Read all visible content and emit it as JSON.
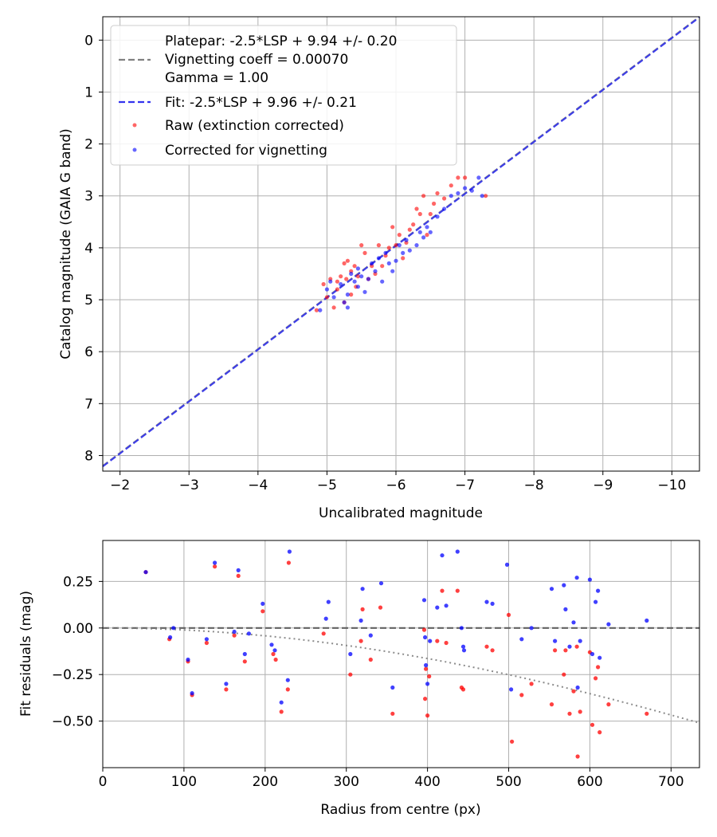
{
  "chart_data": [
    {
      "type": "scatter",
      "xlabel": "Uncalibrated magnitude",
      "ylabel": "Catalog magnitude (GAIA G band)",
      "xlim": [
        -1.75,
        -10.4
      ],
      "ylim": [
        8.3,
        -0.45
      ],
      "xticks": [
        -2,
        -3,
        -4,
        -5,
        -6,
        -7,
        -8,
        -9,
        -10
      ],
      "xtick_labels": [
        "−2",
        "−3",
        "−4",
        "−5",
        "−6",
        "−7",
        "−8",
        "−9",
        "−10"
      ],
      "yticks": [
        0,
        1,
        2,
        3,
        4,
        5,
        6,
        7,
        8
      ],
      "ytick_labels": [
        "0",
        "1",
        "2",
        "3",
        "4",
        "5",
        "6",
        "7",
        "8"
      ],
      "grid": true,
      "legend_position": "top-left",
      "legend": [
        {
          "label": "Platepar: -2.5*LSP + 9.94 +/- 0.20",
          "marker": "none"
        },
        {
          "label": "Vignetting coeff = 0.00070",
          "marker": "dashed-line",
          "color": "#808080"
        },
        {
          "label": "Gamma = 1.00",
          "marker": "none"
        },
        {
          "label": "Fit: -2.5*LSP + 9.96 +/- 0.21",
          "marker": "dashed-line",
          "color": "#3333ee"
        },
        {
          "label": "Raw (extinction corrected)",
          "marker": "dot",
          "color": "#ff0000"
        },
        {
          "label": "Corrected for vignetting",
          "marker": "dot",
          "color": "#0000ff"
        }
      ],
      "lines": [
        {
          "name": "Platepar",
          "x": [
            -1.75,
            -10.4
          ],
          "y": [
            8.2,
            -0.45
          ],
          "color": "#808080",
          "style": "dashed"
        },
        {
          "name": "Fit",
          "x": [
            -1.75,
            -10.4
          ],
          "y": [
            8.21,
            -0.44
          ],
          "color": "#3333ee",
          "style": "dashed"
        }
      ],
      "series": [
        {
          "name": "Raw (extinction corrected)",
          "color": "#ff0000",
          "points": [
            [
              -4.85,
              5.2
            ],
            [
              -4.95,
              4.7
            ],
            [
              -5.0,
              4.95
            ],
            [
              -5.05,
              4.6
            ],
            [
              -5.1,
              5.15
            ],
            [
              -5.15,
              4.8
            ],
            [
              -5.2,
              4.55
            ],
            [
              -5.25,
              4.3
            ],
            [
              -5.28,
              4.6
            ],
            [
              -5.3,
              4.25
            ],
            [
              -5.35,
              4.45
            ],
            [
              -5.4,
              4.35
            ],
            [
              -5.42,
              4.75
            ],
            [
              -5.45,
              4.55
            ],
            [
              -5.5,
              3.95
            ],
            [
              -5.55,
              4.1
            ],
            [
              -5.6,
              4.6
            ],
            [
              -5.65,
              4.35
            ],
            [
              -5.7,
              4.5
            ],
            [
              -5.75,
              3.95
            ],
            [
              -5.8,
              4.35
            ],
            [
              -5.85,
              4.15
            ],
            [
              -5.9,
              4.0
            ],
            [
              -5.95,
              3.6
            ],
            [
              -6.0,
              3.95
            ],
            [
              -6.05,
              3.75
            ],
            [
              -6.1,
              4.2
            ],
            [
              -6.15,
              3.9
            ],
            [
              -6.2,
              3.65
            ],
            [
              -6.25,
              3.55
            ],
            [
              -6.3,
              3.25
            ],
            [
              -6.35,
              3.35
            ],
            [
              -6.4,
              3.0
            ],
            [
              -6.45,
              3.75
            ],
            [
              -6.5,
              3.35
            ],
            [
              -6.55,
              3.15
            ],
            [
              -6.6,
              2.95
            ],
            [
              -6.7,
              3.05
            ],
            [
              -6.8,
              2.8
            ],
            [
              -6.9,
              2.65
            ],
            [
              -7.0,
              2.65
            ],
            [
              -7.3,
              3.0
            ],
            [
              -5.25,
              5.05
            ],
            [
              -5.15,
              4.65
            ],
            [
              -5.35,
              4.9
            ]
          ]
        },
        {
          "name": "Corrected for vignetting",
          "color": "#0000ff",
          "points": [
            [
              -4.9,
              5.2
            ],
            [
              -5.0,
              4.8
            ],
            [
              -5.05,
              4.65
            ],
            [
              -5.1,
              4.95
            ],
            [
              -5.2,
              4.7
            ],
            [
              -5.25,
              5.05
            ],
            [
              -5.3,
              4.9
            ],
            [
              -5.35,
              4.5
            ],
            [
              -5.4,
              4.65
            ],
            [
              -5.45,
              4.4
            ],
            [
              -5.5,
              4.55
            ],
            [
              -5.55,
              4.85
            ],
            [
              -5.6,
              4.6
            ],
            [
              -5.65,
              4.3
            ],
            [
              -5.7,
              4.45
            ],
            [
              -5.75,
              4.2
            ],
            [
              -5.8,
              4.65
            ],
            [
              -5.85,
              4.1
            ],
            [
              -5.9,
              4.3
            ],
            [
              -5.95,
              4.45
            ],
            [
              -6.0,
              4.25
            ],
            [
              -6.05,
              3.95
            ],
            [
              -6.1,
              4.1
            ],
            [
              -6.2,
              4.05
            ],
            [
              -6.3,
              3.95
            ],
            [
              -6.4,
              3.8
            ],
            [
              -6.45,
              3.6
            ],
            [
              -6.5,
              3.7
            ],
            [
              -6.6,
              3.4
            ],
            [
              -6.7,
              3.25
            ],
            [
              -6.8,
              3.0
            ],
            [
              -6.9,
              2.95
            ],
            [
              -7.0,
              2.85
            ],
            [
              -7.1,
              2.9
            ],
            [
              -7.2,
              2.65
            ],
            [
              -7.25,
              3.0
            ],
            [
              -5.3,
              5.15
            ],
            [
              -5.45,
              4.75
            ],
            [
              -6.15,
              3.85
            ],
            [
              -6.35,
              3.7
            ]
          ]
        }
      ]
    },
    {
      "type": "scatter",
      "xlabel": "Radius from centre (px)",
      "ylabel": "Fit residuals (mag)",
      "xlim": [
        0,
        735
      ],
      "ylim": [
        -0.75,
        0.47
      ],
      "xticks": [
        0,
        100,
        200,
        300,
        400,
        500,
        600,
        700
      ],
      "xtick_labels": [
        "0",
        "100",
        "200",
        "300",
        "400",
        "500",
        "600",
        "700"
      ],
      "yticks": [
        0.25,
        0.0,
        -0.25,
        -0.5
      ],
      "ytick_labels": [
        "0.25",
        "0.00",
        "−0.25",
        "−0.50"
      ],
      "grid": true,
      "lines": [
        {
          "name": "zero",
          "x": [
            0,
            735
          ],
          "y": [
            0,
            0
          ],
          "color": "#555555",
          "style": "dashed"
        },
        {
          "name": "vignetting model",
          "curve": "vignetting",
          "coeff": 0.0007,
          "color": "#808080",
          "style": "dotted"
        }
      ],
      "series": [
        {
          "name": "Raw (extinction corrected)",
          "color": "#ff0000",
          "points": [
            [
              53,
              0.3
            ],
            [
              82,
              -0.06
            ],
            [
              105,
              -0.18
            ],
            [
              110,
              -0.36
            ],
            [
              128,
              -0.08
            ],
            [
              138,
              0.33
            ],
            [
              152,
              -0.33
            ],
            [
              162,
              -0.04
            ],
            [
              167,
              0.28
            ],
            [
              175,
              -0.18
            ],
            [
              197,
              0.09
            ],
            [
              210,
              -0.14
            ],
            [
              213,
              -0.17
            ],
            [
              220,
              -0.45
            ],
            [
              228,
              -0.33
            ],
            [
              229,
              0.35
            ],
            [
              272,
              -0.03
            ],
            [
              305,
              -0.25
            ],
            [
              318,
              -0.07
            ],
            [
              320,
              0.1
            ],
            [
              330,
              -0.17
            ],
            [
              342,
              0.11
            ],
            [
              357,
              -0.46
            ],
            [
              396,
              -0.01
            ],
            [
              397,
              -0.38
            ],
            [
              398,
              -0.22
            ],
            [
              400,
              -0.47
            ],
            [
              402,
              -0.26
            ],
            [
              412,
              -0.07
            ],
            [
              418,
              0.2
            ],
            [
              423,
              -0.08
            ],
            [
              437,
              0.2
            ],
            [
              442,
              -0.32
            ],
            [
              444,
              -0.33
            ],
            [
              473,
              -0.1
            ],
            [
              480,
              -0.12
            ],
            [
              500,
              0.07
            ],
            [
              504,
              -0.61
            ],
            [
              516,
              -0.36
            ],
            [
              528,
              -0.3
            ],
            [
              553,
              -0.41
            ],
            [
              557,
              -0.12
            ],
            [
              568,
              -0.25
            ],
            [
              570,
              -0.12
            ],
            [
              575,
              -0.46
            ],
            [
              580,
              -0.34
            ],
            [
              584,
              -0.1
            ],
            [
              585,
              -0.69
            ],
            [
              588,
              -0.45
            ],
            [
              600,
              -0.13
            ],
            [
              603,
              -0.52
            ],
            [
              607,
              -0.27
            ],
            [
              610,
              -0.21
            ],
            [
              612,
              -0.56
            ],
            [
              623,
              -0.41
            ],
            [
              670,
              -0.46
            ]
          ]
        },
        {
          "name": "Corrected for vignetting",
          "color": "#0000ff",
          "points": [
            [
              53,
              0.3
            ],
            [
              83,
              -0.05
            ],
            [
              87,
              0.0
            ],
            [
              105,
              -0.17
            ],
            [
              110,
              -0.35
            ],
            [
              128,
              -0.06
            ],
            [
              138,
              0.35
            ],
            [
              152,
              -0.3
            ],
            [
              162,
              -0.02
            ],
            [
              167,
              0.31
            ],
            [
              175,
              -0.14
            ],
            [
              180,
              -0.03
            ],
            [
              197,
              0.13
            ],
            [
              208,
              -0.09
            ],
            [
              212,
              -0.12
            ],
            [
              220,
              -0.4
            ],
            [
              228,
              -0.28
            ],
            [
              230,
              0.41
            ],
            [
              275,
              0.05
            ],
            [
              278,
              0.14
            ],
            [
              305,
              -0.14
            ],
            [
              318,
              0.04
            ],
            [
              320,
              0.21
            ],
            [
              330,
              -0.04
            ],
            [
              343,
              0.24
            ],
            [
              357,
              -0.32
            ],
            [
              396,
              0.15
            ],
            [
              397,
              -0.05
            ],
            [
              398,
              -0.2
            ],
            [
              400,
              -0.3
            ],
            [
              403,
              -0.07
            ],
            [
              412,
              0.11
            ],
            [
              418,
              0.39
            ],
            [
              423,
              0.12
            ],
            [
              437,
              0.41
            ],
            [
              442,
              0.0
            ],
            [
              444,
              -0.1
            ],
            [
              445,
              -0.12
            ],
            [
              473,
              0.14
            ],
            [
              480,
              0.13
            ],
            [
              498,
              0.34
            ],
            [
              503,
              -0.33
            ],
            [
              516,
              -0.06
            ],
            [
              528,
              0.0
            ],
            [
              553,
              0.21
            ],
            [
              557,
              -0.07
            ],
            [
              568,
              0.23
            ],
            [
              570,
              0.1
            ],
            [
              575,
              -0.1
            ],
            [
              580,
              0.03
            ],
            [
              584,
              0.27
            ],
            [
              585,
              -0.32
            ],
            [
              588,
              -0.07
            ],
            [
              600,
              0.26
            ],
            [
              603,
              -0.14
            ],
            [
              607,
              0.14
            ],
            [
              610,
              0.2
            ],
            [
              612,
              -0.16
            ],
            [
              623,
              0.02
            ],
            [
              670,
              0.04
            ]
          ]
        }
      ]
    }
  ]
}
